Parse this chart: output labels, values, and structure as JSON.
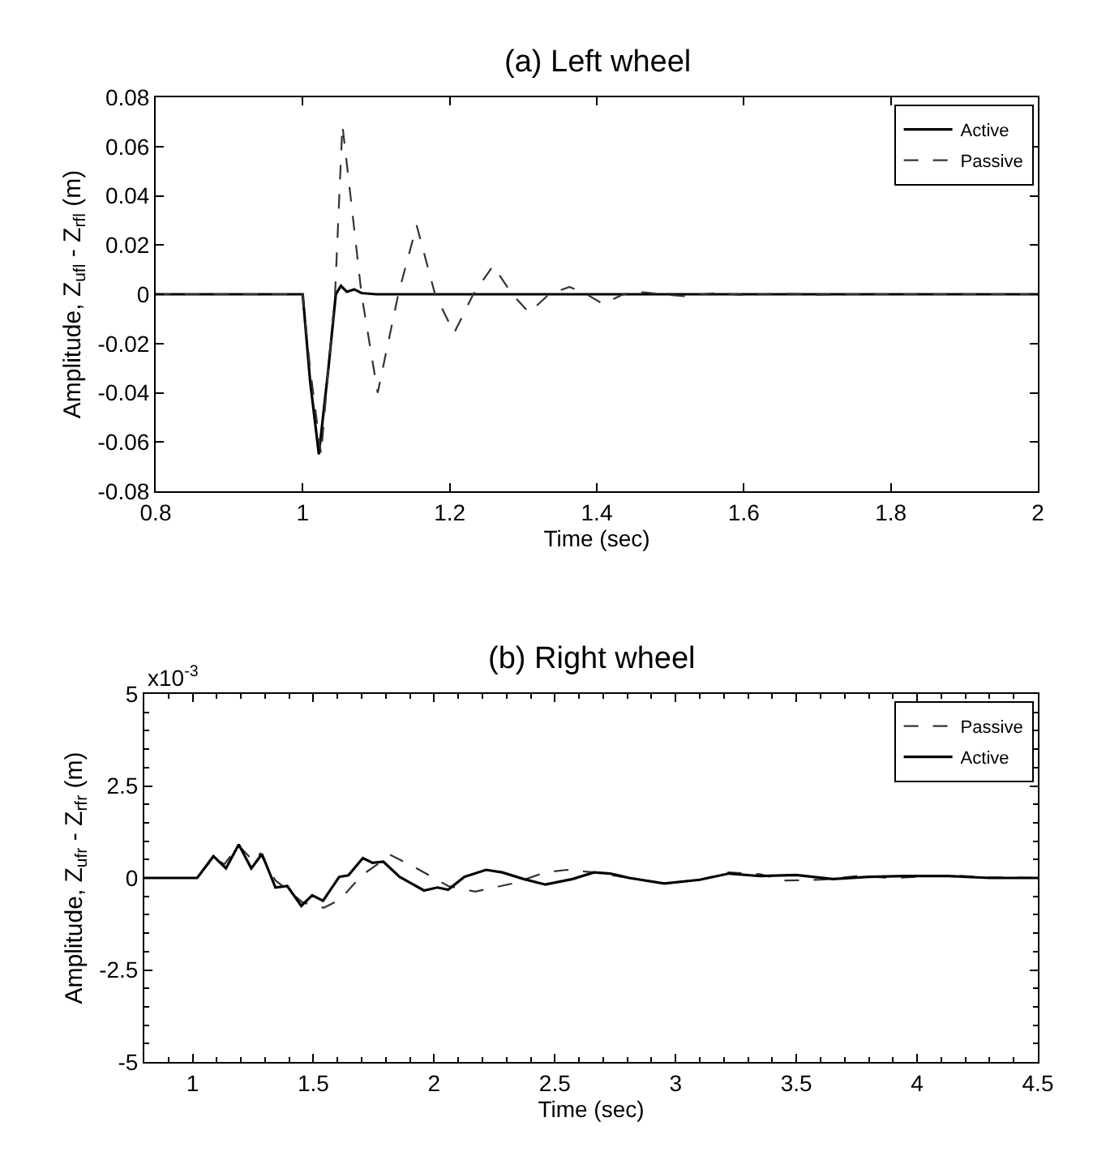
{
  "chart_data": [
    {
      "type": "line",
      "title": "(a) Left wheel",
      "xlabel": "Time (sec)",
      "ylabel": "Amplitude, Z$_{ufl}$ - Z$_{rfl}$ (m)",
      "xlim": [
        0.8,
        2
      ],
      "xticks": [
        0.8,
        1,
        1.2,
        1.4,
        1.6,
        1.8,
        2
      ],
      "ylim": [
        -0.08,
        0.08
      ],
      "yticks": [
        -0.08,
        -0.06,
        -0.04,
        -0.02,
        0,
        0.02,
        0.04,
        0.06,
        0.08
      ],
      "legend": "top right",
      "marker": "none",
      "series": [
        {
          "name": "Active",
          "color": "#000000",
          "line_style": "solid",
          "x": [
            0.8,
            1.0,
            1.01,
            1.022,
            1.035,
            1.045,
            1.052,
            1.06,
            1.07,
            1.08,
            1.1,
            1.13,
            1.2,
            2.0
          ],
          "values": [
            0,
            0,
            -0.035,
            -0.065,
            -0.03,
            0.0,
            0.0034,
            0.001,
            0.002,
            0.0005,
            0.0,
            0.0,
            0.0,
            0.0
          ]
        },
        {
          "name": "Passive",
          "color": "#333333",
          "line_style": "dashed",
          "x": [
            0.8,
            1.0,
            1.01,
            1.025,
            1.035,
            1.044,
            1.054,
            1.065,
            1.08,
            1.102,
            1.13,
            1.155,
            1.18,
            1.206,
            1.232,
            1.259,
            1.285,
            1.308,
            1.335,
            1.363,
            1.386,
            1.409,
            1.436,
            1.464,
            1.49,
            1.52,
            1.56,
            1.6,
            1.65,
            1.7,
            1.75,
            1.8,
            1.9,
            2.0
          ],
          "values": [
            0,
            0,
            -0.03,
            -0.065,
            -0.03,
            0.0,
            0.0687,
            0.04,
            0.0,
            -0.04,
            0.0,
            0.028,
            0.0,
            -0.0157,
            0.0,
            0.0116,
            0.0,
            -0.0075,
            0.0,
            0.003,
            0.0,
            -0.004,
            0.0,
            0.0008,
            0.0,
            -0.0008,
            0.0005,
            -0.0003,
            0.0003,
            -0.0002,
            0.0,
            0.0,
            0.0,
            0.0
          ]
        }
      ]
    },
    {
      "type": "line",
      "title": "(b) Right wheel",
      "xlabel": "Time (sec)",
      "ylabel": "Amplitude, Z$_{ufr}$ - Z$_{rfr}$ (m)",
      "annotations": [
        "x10$^{-3}$"
      ],
      "xlim": [
        0.8,
        4.5
      ],
      "xticks": [
        1,
        1.5,
        2,
        2.5,
        3,
        3.5,
        4,
        4.5
      ],
      "ylim": [
        -5,
        5
      ],
      "yticks": [
        -5,
        -2.5,
        0,
        2.5,
        5
      ],
      "legend": "top right",
      "marker": "none",
      "series": [
        {
          "name": "Passive",
          "color": "#333333",
          "line_style": "dashed",
          "x": [
            0.8,
            1.0,
            1.019,
            1.086,
            1.131,
            1.191,
            1.254,
            1.28,
            1.343,
            1.387,
            1.454,
            1.543,
            1.61,
            1.7,
            1.82,
            1.92,
            2.058,
            2.17,
            2.326,
            2.461,
            2.55,
            2.662,
            2.808,
            2.953,
            3.1,
            3.221,
            3.35,
            3.45,
            3.6,
            3.75,
            3.9,
            4.128,
            4.3,
            4.5
          ],
          "values": [
            0,
            0,
            0.0,
            0.56,
            0.37,
            0.88,
            0.44,
            0.66,
            -0.07,
            -0.29,
            -0.66,
            -0.81,
            -0.59,
            0.07,
            0.62,
            0.29,
            -0.22,
            -0.37,
            -0.15,
            0.15,
            0.22,
            0.15,
            0.0,
            -0.15,
            -0.05,
            0.15,
            0.1,
            -0.07,
            -0.05,
            0.05,
            0.0,
            0.07,
            0.02,
            0.0
          ]
        },
        {
          "name": "Active",
          "color": "#000000",
          "line_style": "solid",
          "x": [
            0.8,
            1.0,
            1.019,
            1.086,
            1.138,
            1.191,
            1.243,
            1.287,
            1.343,
            1.392,
            1.45,
            1.495,
            1.54,
            1.607,
            1.645,
            1.705,
            1.745,
            1.79,
            1.857,
            1.958,
            2.013,
            2.058,
            2.125,
            2.215,
            2.282,
            2.371,
            2.461,
            2.573,
            2.662,
            2.729,
            2.808,
            2.953,
            3.1,
            3.221,
            3.35,
            3.5,
            3.65,
            3.8,
            3.95,
            4.128,
            4.3,
            4.5
          ],
          "values": [
            0,
            0,
            0.0,
            0.59,
            0.26,
            0.91,
            0.26,
            0.65,
            -0.26,
            -0.22,
            -0.76,
            -0.47,
            -0.62,
            0.03,
            0.07,
            0.54,
            0.41,
            0.44,
            0.03,
            -0.34,
            -0.26,
            -0.32,
            0.03,
            0.22,
            0.15,
            -0.03,
            -0.18,
            -0.03,
            0.15,
            0.12,
            0.0,
            -0.15,
            -0.05,
            0.12,
            0.05,
            0.08,
            -0.03,
            0.03,
            0.05,
            0.05,
            0.0,
            0.0
          ]
        }
      ]
    }
  ]
}
